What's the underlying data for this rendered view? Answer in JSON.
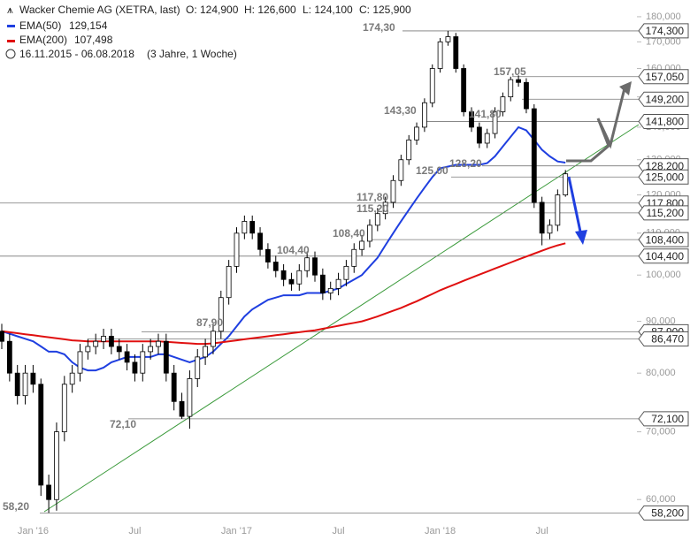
{
  "chart_data": {
    "type": "candlestick",
    "title": "Wacker Chemie AG (XETRA, last)",
    "ohlc_labels": [
      "O: 124,900",
      "H: 126,600",
      "L: 124,100",
      "C: 125,900"
    ],
    "period": "16.11.2015 - 06.08.2018",
    "period_note": "(3 Jahre, 1 Woche)",
    "log_scale": true,
    "categories": [
      null,
      null,
      null,
      null,
      "Jan '16",
      null,
      null,
      null,
      null,
      null,
      null,
      null,
      null,
      null,
      null,
      null,
      null,
      "Jul",
      null,
      null,
      null,
      null,
      null,
      null,
      null,
      null,
      null,
      null,
      null,
      null,
      "Jan '17",
      null,
      null,
      null,
      null,
      null,
      null,
      null,
      null,
      null,
      null,
      null,
      null,
      "Jul",
      null,
      null,
      null,
      null,
      null,
      null,
      null,
      null,
      null,
      null,
      null,
      null,
      "Jan '18",
      null,
      null,
      null,
      null,
      null,
      null,
      null,
      null,
      null,
      null,
      null,
      null,
      "Jul",
      null,
      null,
      null
    ],
    "open": [
      88,
      86,
      80,
      76,
      80,
      78,
      62,
      60,
      70,
      78,
      80,
      84,
      85,
      86,
      87,
      85,
      84,
      82,
      80,
      84,
      85,
      86,
      80,
      75,
      72.5,
      79,
      83,
      85,
      88,
      95,
      102,
      110,
      113,
      110,
      106,
      103,
      101,
      99,
      98,
      101,
      104,
      100,
      96,
      97,
      99,
      102,
      106,
      108,
      112,
      115,
      118,
      124,
      130,
      136,
      140,
      148,
      160,
      170,
      172,
      160,
      145,
      140,
      135,
      138,
      145,
      150,
      156,
      155,
      146,
      118,
      110,
      112,
      120
    ],
    "high": [
      89.5,
      87.5,
      81.5,
      81.5,
      81.5,
      79,
      63.5,
      71.5,
      79.5,
      81.5,
      85.5,
      86.5,
      87.5,
      88.5,
      88.5,
      86.5,
      85.5,
      83.5,
      85.5,
      86.5,
      87.5,
      87.5,
      81.5,
      76.5,
      80.5,
      84.5,
      86.5,
      89.5,
      96.5,
      103.5,
      111.5,
      114.5,
      114.5,
      111.5,
      107.5,
      104.5,
      102.5,
      100.5,
      102.5,
      105.5,
      105.5,
      101.5,
      98.5,
      100.5,
      103.5,
      107.5,
      109.5,
      113.5,
      116.5,
      119.5,
      125.5,
      131.5,
      137.5,
      141.5,
      149.5,
      161.5,
      171.5,
      174.3,
      173.5,
      161.5,
      146.5,
      141.5,
      139.5,
      146.5,
      151.5,
      157.05,
      157.5,
      156.5,
      147.5,
      119.5,
      113.5,
      121.5,
      127
    ],
    "low": [
      84.5,
      78.5,
      74.5,
      74.5,
      76.5,
      60.5,
      58.2,
      58.5,
      68.5,
      76.5,
      78.5,
      82.5,
      83.5,
      84.5,
      83.5,
      82.5,
      80.5,
      78.5,
      78.5,
      82.5,
      83.5,
      78.5,
      73.5,
      72.1,
      70.5,
      77.5,
      81.5,
      83.5,
      86.5,
      93.5,
      100.5,
      108.5,
      108.5,
      104.5,
      101.5,
      99.5,
      97.5,
      96.5,
      96.5,
      99.5,
      98.5,
      94.5,
      94.5,
      95.5,
      97.5,
      100.5,
      104.5,
      106.5,
      110.5,
      113.5,
      116.5,
      122.5,
      128.5,
      134.5,
      138.5,
      146.5,
      158.5,
      168.5,
      158.5,
      143.5,
      138.5,
      133.5,
      133.5,
      136.5,
      143.5,
      148.5,
      153.5,
      144.5,
      116.5,
      107,
      108.5,
      110.5,
      119.5
    ],
    "close": [
      86,
      80,
      76,
      80,
      78,
      62,
      60,
      70,
      78,
      80,
      84,
      85,
      86,
      87,
      85,
      84,
      82,
      80,
      84,
      85,
      86,
      80,
      75,
      72.5,
      79,
      83,
      85,
      88,
      95,
      102,
      110,
      113,
      110,
      106,
      103,
      101,
      99,
      98,
      101,
      104,
      100,
      96,
      97,
      99,
      102,
      106,
      108,
      112,
      115,
      118,
      124,
      130,
      136,
      140,
      148,
      160,
      170,
      172,
      160,
      145,
      140,
      135,
      138,
      145,
      150,
      156,
      155,
      146,
      118,
      110,
      112,
      120,
      125.9
    ],
    "series": [
      {
        "name": "EMA(50)",
        "color": "#1f3fe0",
        "last_label": "129,154",
        "values": [
          88,
          87.5,
          87,
          86.5,
          86,
          85,
          84,
          84,
          83.5,
          82,
          81,
          80.5,
          80.5,
          81,
          82,
          82.5,
          83,
          83,
          83,
          83,
          83.5,
          83.5,
          83,
          82.5,
          82,
          82.5,
          83,
          84,
          85.5,
          87,
          89,
          91,
          92.5,
          93.5,
          94.5,
          95,
          95.5,
          95.5,
          95.5,
          96,
          96,
          96,
          96.5,
          97,
          98,
          99,
          100,
          102,
          104,
          107,
          110,
          113,
          116,
          119,
          122,
          125,
          127.5,
          128,
          128.5,
          128.5,
          128.5,
          128.5,
          129,
          131,
          134,
          137,
          140,
          139,
          136,
          133,
          131,
          129.5,
          129.154
        ]
      },
      {
        "name": "EMA(200)",
        "color": "#e01010",
        "last_label": "107,498",
        "values": [
          88,
          87.8,
          87.6,
          87.4,
          87.2,
          87,
          86.8,
          86.6,
          86.4,
          86.2,
          86.1,
          86,
          86,
          86,
          86,
          86,
          86,
          86,
          86,
          86,
          86,
          85.9,
          85.8,
          85.7,
          85.6,
          85.5,
          85.5,
          85.6,
          85.8,
          86,
          86.2,
          86.4,
          86.6,
          86.8,
          87,
          87.2,
          87.4,
          87.6,
          87.8,
          88,
          88.2,
          88.5,
          88.8,
          89.1,
          89.4,
          89.7,
          90,
          90.5,
          91,
          91.6,
          92.2,
          92.8,
          93.5,
          94.2,
          95,
          95.8,
          96.6,
          97.3,
          98,
          98.7,
          99.4,
          100.1,
          100.8,
          101.5,
          102.2,
          102.9,
          103.6,
          104.3,
          105,
          105.7,
          106.4,
          107,
          107.498
        ]
      }
    ],
    "ylim": [
      55.5,
      184
    ],
    "yticks": [
      {
        "value": 60,
        "label": "60,000"
      },
      {
        "value": 70,
        "label": "70,000"
      },
      {
        "value": 80,
        "label": "80,000"
      },
      {
        "value": 90,
        "label": "90,000"
      },
      {
        "value": 100,
        "label": "100,000"
      },
      {
        "value": 110,
        "label": "110,000"
      },
      {
        "value": 120,
        "label": "120,000"
      },
      {
        "value": 130,
        "label": "130,000"
      },
      {
        "value": 140,
        "label": "140,000"
      },
      {
        "value": 150,
        "label": "150,000"
      },
      {
        "value": 160,
        "label": "160,000"
      },
      {
        "value": 170,
        "label": "170,000"
      },
      {
        "value": 180,
        "label": "180,000"
      }
    ],
    "levels": [
      {
        "value": 174.3,
        "label": "174,300"
      },
      {
        "value": 157.05,
        "label": "157,050"
      },
      {
        "value": 149.2,
        "label": "149,200"
      },
      {
        "value": 141.8,
        "label": "141,800"
      },
      {
        "value": 128.2,
        "label": "128,200"
      },
      {
        "value": 125,
        "label": "125,000"
      },
      {
        "value": 117.8,
        "label": "117,800"
      },
      {
        "value": 115.2,
        "label": "115,200"
      },
      {
        "value": 108.4,
        "label": "108,400"
      },
      {
        "value": 104.4,
        "label": "104,400"
      },
      {
        "value": 87.9,
        "label": "87,900"
      },
      {
        "value": 86.47,
        "label": "86,470"
      },
      {
        "value": 72.1,
        "label": "72,100"
      },
      {
        "value": 58.2,
        "label": "58,200"
      }
    ],
    "annotations": [
      "174,30",
      "157,05",
      "143,30",
      "141,80",
      "128,20",
      "125,00",
      "117,80",
      "115,20",
      "108,40",
      "104,40",
      "87,90",
      "72,10",
      "58,20"
    ]
  }
}
